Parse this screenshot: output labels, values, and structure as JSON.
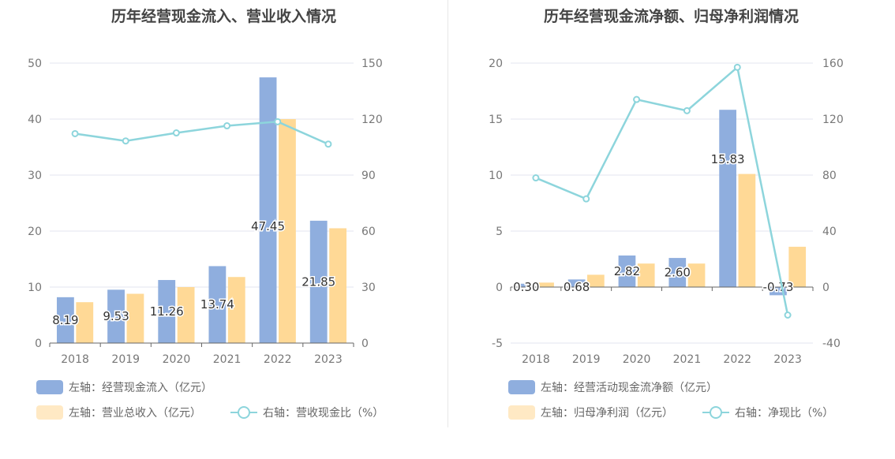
{
  "colors": {
    "bar1": "#8faede",
    "bar2": "#ffd996",
    "line": "#8dd5dc",
    "grid": "#e3e6ef",
    "axis": "#666666"
  },
  "chart_data": [
    {
      "type": "bar",
      "title": "历年经营现金流入、营业收入情况",
      "categories": [
        "2018",
        "2019",
        "2020",
        "2021",
        "2022",
        "2023"
      ],
      "y_left": {
        "min": 0,
        "max": 50,
        "ticks": [
          "0",
          "10",
          "20",
          "30",
          "40",
          "50"
        ]
      },
      "y_right": {
        "min": 0,
        "max": 150,
        "ticks": [
          "0",
          "30",
          "60",
          "90",
          "120",
          "150"
        ]
      },
      "series": [
        {
          "name": "左轴：经营现金流入（亿元）",
          "axis": "left",
          "kind": "bar",
          "values": [
            8.19,
            9.53,
            11.26,
            13.74,
            47.45,
            21.85
          ],
          "labels": [
            "8.19",
            "9.53",
            "11.26",
            "13.74",
            "47.45",
            "21.85"
          ]
        },
        {
          "name": "左轴：营业总收入（亿元）",
          "axis": "left",
          "kind": "bar",
          "values": [
            7.3,
            8.8,
            10.0,
            11.8,
            40.0,
            20.5
          ]
        },
        {
          "name": "右轴：营收现金比（%）",
          "axis": "right",
          "kind": "line",
          "values": [
            112.2,
            108.3,
            112.6,
            116.4,
            118.6,
            106.6
          ]
        }
      ]
    },
    {
      "type": "bar",
      "title": "历年经营现金流净额、归母净利润情况",
      "categories": [
        "2018",
        "2019",
        "2020",
        "2021",
        "2022",
        "2023"
      ],
      "y_left": {
        "min": -5,
        "max": 20,
        "ticks": [
          "-5",
          "0",
          "5",
          "10",
          "15",
          "20"
        ]
      },
      "y_right": {
        "min": -40,
        "max": 160,
        "ticks": [
          "-40",
          "0",
          "40",
          "80",
          "120",
          "160"
        ]
      },
      "series": [
        {
          "name": "左轴：经营活动现金流净额（亿元）",
          "axis": "left",
          "kind": "bar",
          "values": [
            0.3,
            0.68,
            2.82,
            2.6,
            15.83,
            -0.73
          ],
          "labels": [
            "0.30",
            "0.68",
            "2.82",
            "2.60",
            "15.83",
            "-0.73"
          ]
        },
        {
          "name": "左轴：归母净利润（亿元）",
          "axis": "left",
          "kind": "bar",
          "values": [
            0.4,
            1.1,
            2.1,
            2.1,
            10.1,
            3.6
          ]
        },
        {
          "name": "右轴：净现比（%）",
          "axis": "right",
          "kind": "line",
          "values": [
            78,
            63,
            134,
            126,
            157,
            -20
          ]
        }
      ]
    }
  ]
}
